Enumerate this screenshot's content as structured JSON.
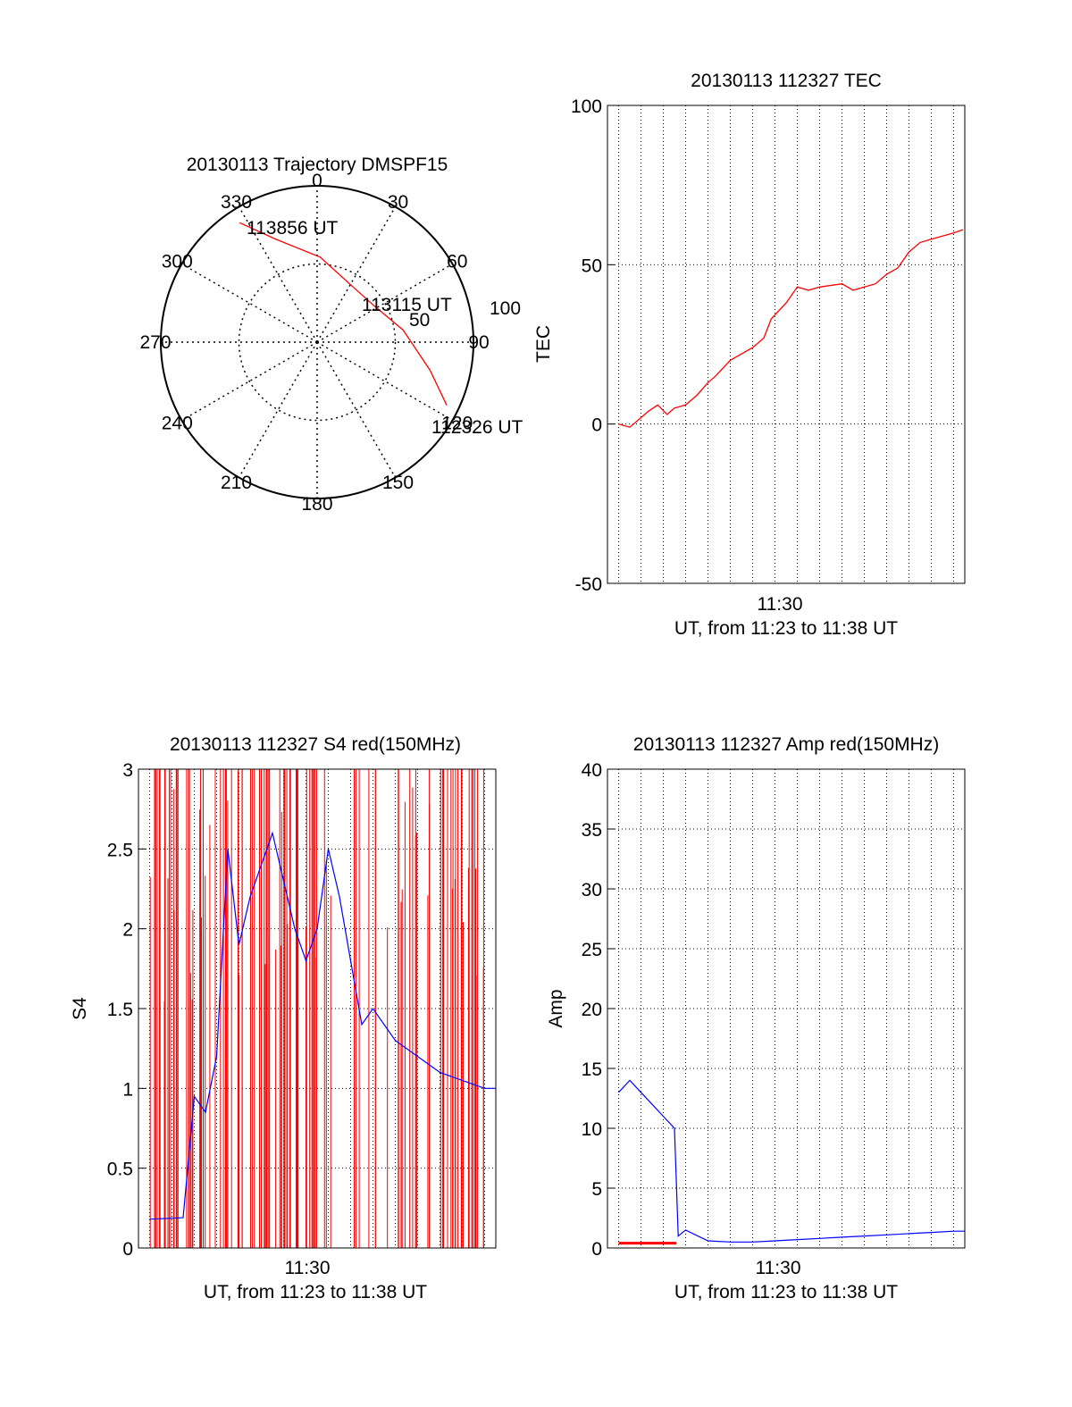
{
  "colors": {
    "red": "#ff0000",
    "blue": "#0000ff",
    "axis": "#000000"
  },
  "chart_data": [
    {
      "type": "polar",
      "title": "20130113 Trajectory DMSPF15",
      "azimuth_labels": [
        "0",
        "30",
        "60",
        "90",
        "120",
        "150",
        "180",
        "210",
        "240",
        "270",
        "300",
        "330"
      ],
      "radial_labels": [
        "50",
        "100"
      ],
      "series": [
        {
          "color": "#ff0000",
          "points": [
            {
              "az": 327,
              "el": 8
            },
            {
              "az": 338,
              "el": 26
            },
            {
              "az": 2,
              "el": 41
            },
            {
              "az": 32,
              "el": 52
            },
            {
              "az": 58,
              "el": 51
            },
            {
              "az": 82,
              "el": 40
            },
            {
              "az": 104,
              "el": 23
            },
            {
              "az": 116,
              "el": 7
            }
          ]
        }
      ],
      "annotations": [
        "113856 UT",
        "113115 UT",
        "112326 UT"
      ]
    },
    {
      "type": "line",
      "title": "20130113 112327 TEC",
      "xlabel": "UT, from 11:23 to 11:38 UT",
      "ylabel": "TEC",
      "xtick_label": "11:30",
      "xrange": [
        "11:22:30",
        "11:38:30"
      ],
      "ylim": [
        -50,
        100
      ],
      "yticks": [
        "-50",
        "0",
        "50",
        "100"
      ],
      "grid": true,
      "series": [
        {
          "color": "#ff0000",
          "x": [
            "11:23:00",
            "11:23:30",
            "11:24:00",
            "11:24:20",
            "11:24:45",
            "11:25:10",
            "11:25:30",
            "11:26:00",
            "11:26:30",
            "11:27:00",
            "11:27:20",
            "11:28:00",
            "11:28:30",
            "11:29:00",
            "11:29:30",
            "11:29:50",
            "11:30:30",
            "11:31:00",
            "11:31:30",
            "11:32:00",
            "11:33:00",
            "11:33:30",
            "11:34:00",
            "11:34:30",
            "11:35:00",
            "11:35:30",
            "11:36:00",
            "11:36:30",
            "11:37:00",
            "11:37:30",
            "11:38:00",
            "11:38:25"
          ],
          "y": [
            0,
            -1,
            2,
            4,
            6,
            3,
            5,
            6,
            9,
            13,
            15,
            20,
            22,
            24,
            27,
            33,
            38,
            43,
            42,
            43,
            44,
            42,
            43,
            44,
            47,
            49,
            54,
            57,
            58,
            59,
            60,
            61
          ]
        }
      ]
    },
    {
      "type": "line",
      "title": "20130113 112327 S4 red(150MHz)",
      "xlabel": "UT, from 11:23 to 11:38 UT",
      "ylabel": "S4",
      "xtick_label": "11:30",
      "xrange": [
        "11:22:30",
        "11:38:30"
      ],
      "ylim": [
        0,
        3
      ],
      "yticks": [
        "0",
        "0.5",
        "1",
        "1.5",
        "2",
        "2.5",
        "3"
      ],
      "grid": true,
      "series": [
        {
          "color": "#0000ff",
          "x": [
            "11:23:00",
            "11:24:30",
            "11:25:00",
            "11:25:30",
            "11:26:00",
            "11:26:30",
            "11:27:00",
            "11:27:30",
            "11:28:00",
            "11:28:30",
            "11:29:00",
            "11:29:30",
            "11:30:00",
            "11:30:30",
            "11:31:00",
            "11:31:30",
            "11:32:00",
            "11:32:30",
            "11:33:00",
            "11:33:30",
            "11:34:00",
            "11:35:00",
            "11:36:00",
            "11:37:00",
            "11:38:00",
            "11:38:30"
          ],
          "y": [
            0.18,
            0.19,
            0.95,
            0.85,
            1.2,
            2.5,
            1.9,
            2.2,
            2.4,
            2.6,
            2.3,
            2.0,
            1.8,
            2.0,
            2.5,
            2.2,
            1.8,
            1.4,
            1.5,
            1.4,
            1.3,
            1.2,
            1.1,
            1.05,
            1.0,
            1.0
          ]
        }
      ]
    },
    {
      "type": "line",
      "title": "20130113 112327 Amp red(150MHz)",
      "xlabel": "UT, from 11:23 to 11:38 UT",
      "ylabel": "Amp",
      "xtick_label": "11:30",
      "xrange": [
        "11:22:30",
        "11:38:30"
      ],
      "ylim": [
        0,
        40
      ],
      "yticks": [
        "0",
        "5",
        "10",
        "15",
        "20",
        "25",
        "30",
        "35",
        "40"
      ],
      "grid": true,
      "series": [
        {
          "color": "#0000ff",
          "x": [
            "11:23:00",
            "11:23:30",
            "11:24:00",
            "11:24:30",
            "11:25:00",
            "11:25:30",
            "11:25:40",
            "11:26:00",
            "11:27:00",
            "11:28:00",
            "11:29:00",
            "11:30:00",
            "11:31:00",
            "11:32:00",
            "11:33:00",
            "11:34:00",
            "11:35:00",
            "11:36:00",
            "11:37:00",
            "11:38:00",
            "11:38:30"
          ],
          "y": [
            13,
            14,
            13,
            12,
            11,
            10,
            1,
            1.5,
            0.6,
            0.5,
            0.5,
            0.6,
            0.7,
            0.8,
            0.9,
            1.0,
            1.1,
            1.2,
            1.3,
            1.4,
            1.4
          ]
        },
        {
          "color": "#ff0000",
          "x": [
            "11:23:00",
            "11:24:00",
            "11:25:00",
            "11:25:35"
          ],
          "y": [
            0.4,
            0.4,
            0.4,
            0.4
          ]
        }
      ]
    }
  ]
}
